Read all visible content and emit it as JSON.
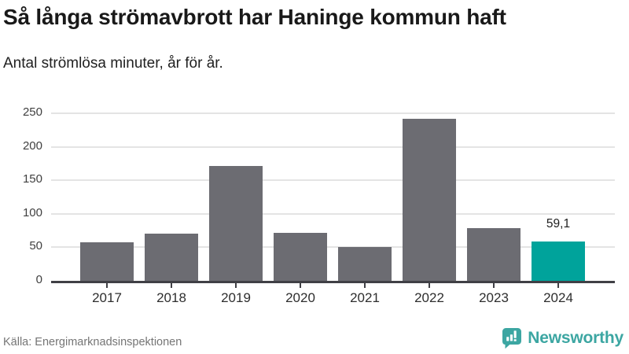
{
  "header": {
    "title": "Så långa strömavbrott har Haninge kommun haft",
    "subtitle": "Antal strömlösa minuter, år för år."
  },
  "chart_data": {
    "type": "bar",
    "title": "Så långa strömavbrott har Haninge kommun haft",
    "subtitle": "Antal strömlösa minuter, år för år.",
    "categories": [
      "2017",
      "2018",
      "2019",
      "2020",
      "2021",
      "2022",
      "2023",
      "2024"
    ],
    "values": [
      58,
      71,
      171,
      72,
      51,
      242,
      79,
      59.1
    ],
    "value_labels": [
      "",
      "",
      "",
      "",
      "",
      "",
      "",
      "59,1"
    ],
    "highlight_index": 7,
    "xlabel": "",
    "ylabel": "Antal strömlösa minuter",
    "ylim": [
      0,
      250
    ],
    "yticks": [
      0,
      50,
      100,
      150,
      200,
      250
    ],
    "grid": true,
    "legend": false
  },
  "colors": {
    "bar": "#6c6c72",
    "highlight": "#00a39b",
    "axis": "#404045",
    "grid": "#e4e4e4",
    "brand": "#3ca6a2"
  },
  "footer": {
    "source": "Källa: Energimarknadsinspektionen",
    "brand": "Newsworthy"
  }
}
